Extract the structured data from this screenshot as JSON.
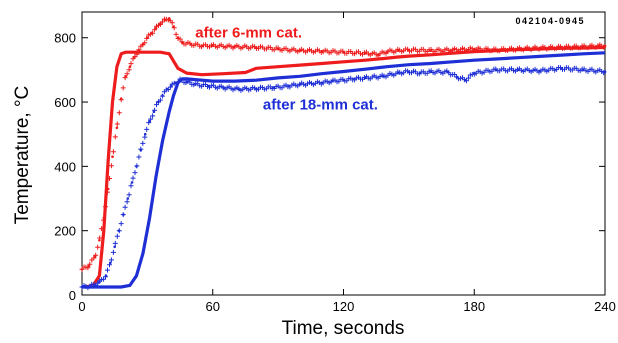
{
  "chart_data": {
    "type": "line",
    "corner_code": "042104-0945",
    "xlabel": "Time, seconds",
    "ylabel": "Temperature, °C",
    "xlim": [
      0,
      240
    ],
    "ylim": [
      0,
      880
    ],
    "xticks": [
      0,
      60,
      120,
      180,
      240
    ],
    "yticks": [
      0,
      200,
      400,
      600,
      800
    ],
    "grid": false,
    "annotations": [
      {
        "text": "after 6-mm cat.",
        "color": "#ee1c1c",
        "x": 52,
        "y": 800
      },
      {
        "text": "after 18-mm cat.",
        "color": "#1e2fd6",
        "x": 83,
        "y": 577
      }
    ],
    "series": [
      {
        "color": "#ee1c1c",
        "style": "solid",
        "points": [
          [
            0,
            25
          ],
          [
            5,
            28
          ],
          [
            8,
            60
          ],
          [
            10,
            200
          ],
          [
            12,
            420
          ],
          [
            14,
            600
          ],
          [
            16,
            710
          ],
          [
            18,
            750
          ],
          [
            20,
            755
          ],
          [
            25,
            755
          ],
          [
            30,
            755
          ],
          [
            36,
            755
          ],
          [
            40,
            750
          ],
          [
            44,
            705
          ],
          [
            48,
            690
          ],
          [
            55,
            685
          ],
          [
            65,
            688
          ],
          [
            75,
            692
          ],
          [
            80,
            705
          ],
          [
            90,
            710
          ],
          [
            100,
            715
          ],
          [
            110,
            720
          ],
          [
            120,
            725
          ],
          [
            130,
            730
          ],
          [
            138,
            735
          ],
          [
            145,
            740
          ],
          [
            150,
            743
          ],
          [
            160,
            747
          ],
          [
            170,
            752
          ],
          [
            180,
            757
          ],
          [
            190,
            760
          ],
          [
            200,
            763
          ],
          [
            210,
            765
          ],
          [
            220,
            767
          ],
          [
            230,
            768
          ],
          [
            240,
            770
          ]
        ]
      },
      {
        "color": "#ee1c1c",
        "style": "markers",
        "points": [
          [
            0,
            80
          ],
          [
            3,
            90
          ],
          [
            6,
            120
          ],
          [
            8,
            170
          ],
          [
            10,
            240
          ],
          [
            12,
            330
          ],
          [
            14,
            430
          ],
          [
            16,
            520
          ],
          [
            18,
            610
          ],
          [
            20,
            680
          ],
          [
            22,
            710
          ],
          [
            24,
            740
          ],
          [
            26,
            760
          ],
          [
            28,
            780
          ],
          [
            30,
            800
          ],
          [
            32,
            815
          ],
          [
            34,
            830
          ],
          [
            36,
            845
          ],
          [
            38,
            855
          ],
          [
            40,
            860
          ],
          [
            42,
            835
          ],
          [
            44,
            800
          ],
          [
            46,
            785
          ],
          [
            50,
            780
          ],
          [
            55,
            775
          ],
          [
            60,
            775
          ],
          [
            70,
            772
          ],
          [
            80,
            770
          ],
          [
            90,
            765
          ],
          [
            100,
            760
          ],
          [
            110,
            758
          ],
          [
            120,
            755
          ],
          [
            130,
            752
          ],
          [
            136,
            748
          ],
          [
            140,
            757
          ],
          [
            145,
            760
          ],
          [
            150,
            762
          ],
          [
            160,
            760
          ],
          [
            170,
            762
          ],
          [
            180,
            765
          ],
          [
            190,
            762
          ],
          [
            200,
            765
          ],
          [
            210,
            768
          ],
          [
            220,
            770
          ],
          [
            230,
            772
          ],
          [
            240,
            775
          ]
        ]
      },
      {
        "color": "#1e2fd6",
        "style": "solid",
        "points": [
          [
            0,
            25
          ],
          [
            10,
            25
          ],
          [
            18,
            25
          ],
          [
            22,
            30
          ],
          [
            25,
            60
          ],
          [
            28,
            130
          ],
          [
            31,
            240
          ],
          [
            34,
            370
          ],
          [
            37,
            480
          ],
          [
            40,
            570
          ],
          [
            42,
            620
          ],
          [
            44,
            660
          ],
          [
            46,
            672
          ],
          [
            48,
            672
          ],
          [
            55,
            668
          ],
          [
            60,
            665
          ],
          [
            70,
            665
          ],
          [
            80,
            668
          ],
          [
            90,
            675
          ],
          [
            100,
            680
          ],
          [
            110,
            688
          ],
          [
            120,
            695
          ],
          [
            130,
            702
          ],
          [
            140,
            710
          ],
          [
            150,
            716
          ],
          [
            160,
            720
          ],
          [
            170,
            725
          ],
          [
            180,
            730
          ],
          [
            190,
            734
          ],
          [
            200,
            738
          ],
          [
            210,
            742
          ],
          [
            220,
            746
          ],
          [
            230,
            750
          ],
          [
            240,
            753
          ]
        ]
      },
      {
        "color": "#1e2fd6",
        "style": "markers",
        "points": [
          [
            0,
            25
          ],
          [
            4,
            28
          ],
          [
            8,
            40
          ],
          [
            11,
            60
          ],
          [
            13,
            100
          ],
          [
            15,
            150
          ],
          [
            17,
            200
          ],
          [
            19,
            250
          ],
          [
            21,
            300
          ],
          [
            23,
            350
          ],
          [
            25,
            400
          ],
          [
            27,
            450
          ],
          [
            29,
            500
          ],
          [
            31,
            540
          ],
          [
            33,
            570
          ],
          [
            35,
            600
          ],
          [
            37,
            620
          ],
          [
            39,
            640
          ],
          [
            41,
            650
          ],
          [
            43,
            660
          ],
          [
            45,
            668
          ],
          [
            48,
            662
          ],
          [
            52,
            655
          ],
          [
            58,
            650
          ],
          [
            65,
            645
          ],
          [
            72,
            640
          ],
          [
            80,
            642
          ],
          [
            88,
            645
          ],
          [
            95,
            650
          ],
          [
            100,
            655
          ],
          [
            110,
            660
          ],
          [
            115,
            665
          ],
          [
            120,
            668
          ],
          [
            125,
            672
          ],
          [
            130,
            675
          ],
          [
            138,
            680
          ],
          [
            145,
            690
          ],
          [
            150,
            695
          ],
          [
            155,
            690
          ],
          [
            160,
            694
          ],
          [
            168,
            693
          ],
          [
            172,
            678
          ],
          [
            176,
            668
          ],
          [
            180,
            690
          ],
          [
            190,
            700
          ],
          [
            200,
            700
          ],
          [
            210,
            697
          ],
          [
            220,
            705
          ],
          [
            230,
            700
          ],
          [
            240,
            695
          ]
        ]
      }
    ]
  }
}
